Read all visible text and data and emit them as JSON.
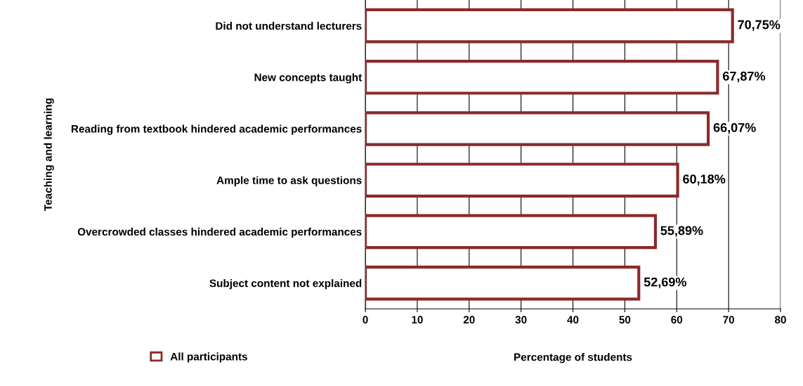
{
  "chart_data": {
    "type": "bar",
    "orientation": "horizontal",
    "xlabel": "Percentage of students",
    "ylabel": "Teaching and learning",
    "categories": [
      "Did not understand lecturers",
      "New concepts taught",
      "Reading from textbook hindered academic performances",
      "Ample time to ask questions",
      "Overcrowded classes hindered academic performances",
      "Subject content not explained"
    ],
    "series": [
      {
        "name": "All participants",
        "color": "#8b2a2a",
        "values": [
          70.75,
          67.87,
          66.07,
          60.18,
          55.89,
          52.69
        ],
        "value_labels": [
          "70,75%",
          "67,87%",
          "66,07%",
          "60,18%",
          "55,89%",
          "52,69%"
        ]
      }
    ],
    "xlim": [
      0,
      80
    ],
    "xticks": [
      0,
      10,
      20,
      30,
      40,
      50,
      60,
      70,
      80
    ],
    "grid": "x",
    "legend": "bottom left"
  }
}
